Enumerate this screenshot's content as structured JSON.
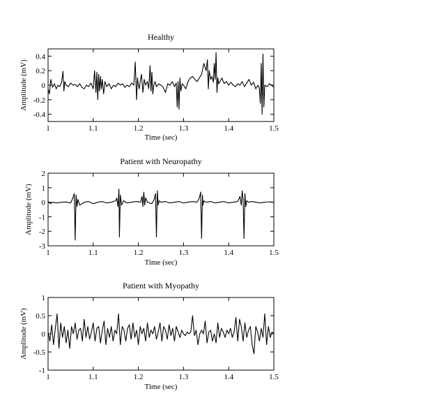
{
  "chart_data": [
    {
      "type": "line",
      "title": "Healthy",
      "xlabel": "Time (sec)",
      "ylabel": "Amplitude (mV)",
      "xlim": [
        1,
        1.5
      ],
      "ylim": [
        -0.5,
        0.5
      ],
      "xticks": [
        1,
        1.1,
        1.2,
        1.3,
        1.4,
        1.5
      ],
      "xtick_labels": [
        "1",
        "1.1",
        "1.2",
        "1.3",
        "1.4",
        "1.5"
      ],
      "yticks": [
        -0.4,
        -0.2,
        0,
        0.2,
        0.4
      ],
      "ytick_labels": [
        "-0.4",
        "-0.2",
        "0",
        "0.2",
        "0.4"
      ],
      "series": [
        {
          "x": [
            1.0,
            1.003,
            1.006,
            1.01,
            1.014,
            1.018,
            1.022,
            1.026,
            1.03,
            1.033,
            1.035,
            1.037,
            1.04,
            1.045,
            1.05,
            1.055,
            1.06,
            1.065,
            1.07,
            1.075,
            1.08,
            1.085,
            1.09,
            1.095,
            1.1,
            1.103,
            1.106,
            1.108,
            1.11,
            1.112,
            1.114,
            1.116,
            1.118,
            1.12,
            1.123,
            1.126,
            1.13,
            1.135,
            1.14,
            1.145,
            1.15,
            1.155,
            1.16,
            1.165,
            1.17,
            1.175,
            1.18,
            1.185,
            1.19,
            1.193,
            1.196,
            1.198,
            1.2,
            1.202,
            1.204,
            1.207,
            1.21,
            1.213,
            1.216,
            1.22,
            1.223,
            1.226,
            1.228,
            1.23,
            1.232,
            1.234,
            1.237,
            1.24,
            1.245,
            1.25,
            1.255,
            1.26,
            1.265,
            1.27,
            1.275,
            1.28,
            1.284,
            1.286,
            1.288,
            1.29,
            1.292,
            1.294,
            1.297,
            1.3,
            1.305,
            1.31,
            1.315,
            1.32,
            1.325,
            1.33,
            1.335,
            1.34,
            1.345,
            1.35,
            1.353,
            1.355,
            1.357,
            1.36,
            1.363,
            1.366,
            1.368,
            1.37,
            1.372,
            1.374,
            1.376,
            1.378,
            1.38,
            1.385,
            1.39,
            1.395,
            1.4,
            1.405,
            1.41,
            1.415,
            1.42,
            1.425,
            1.43,
            1.435,
            1.44,
            1.445,
            1.45,
            1.455,
            1.46,
            1.465,
            1.468,
            1.47,
            1.472,
            1.474,
            1.476,
            1.478,
            1.48,
            1.485,
            1.49,
            1.495,
            1.5
          ],
          "y": [
            -0.05,
            -0.12,
            0.08,
            -0.03,
            0.02,
            -0.05,
            0.0,
            -0.02,
            0.04,
            0.19,
            -0.08,
            0.05,
            0.0,
            -0.02,
            0.03,
            0.0,
            0.01,
            -0.02,
            0.02,
            -0.03,
            -0.05,
            0.0,
            -0.02,
            0.03,
            -0.05,
            0.2,
            -0.1,
            0.18,
            -0.2,
            0.15,
            -0.08,
            0.12,
            -0.05,
            0.08,
            -0.12,
            0.05,
            -0.02,
            0.02,
            -0.05,
            0.0,
            -0.02,
            0.03,
            0.0,
            0.02,
            -0.03,
            0.0,
            -0.02,
            0.03,
            0.0,
            0.32,
            -0.2,
            0.1,
            0.0,
            -0.05,
            0.05,
            0.15,
            -0.1,
            0.08,
            0.0,
            0.05,
            -0.05,
            0.27,
            -0.08,
            0.18,
            -0.12,
            0.0,
            0.05,
            -0.02,
            0.02,
            0.0,
            -0.03,
            -0.1,
            0.02,
            0.0,
            0.05,
            -0.02,
            0.03,
            -0.3,
            0.05,
            -0.33,
            0.1,
            -0.08,
            0.02,
            0.0,
            -0.05,
            0.05,
            0.1,
            0.12,
            0.08,
            0.05,
            0.1,
            0.15,
            0.3,
            0.2,
            0.35,
            -0.05,
            0.2,
            0.08,
            0.12,
            0.04,
            0.3,
            0.08,
            0.45,
            -0.1,
            0.1,
            0.02,
            0.04,
            0.1,
            0.02,
            0.05,
            0.0,
            0.04,
            0.0,
            -0.02,
            0.02,
            0.0,
            0.05,
            -0.02,
            0.03,
            0.08,
            0.0,
            0.04,
            -0.05,
            0.0,
            -0.05,
            -0.25,
            0.3,
            -0.4,
            0.43,
            -0.3,
            0.0,
            -0.02,
            0.02,
            0.0,
            -0.03
          ]
        }
      ]
    },
    {
      "type": "line",
      "title": "Patient with Neuropathy",
      "xlabel": "Time (sec)",
      "ylabel": "Amplitude (mV)",
      "xlim": [
        1,
        1.5
      ],
      "ylim": [
        -3,
        2
      ],
      "xticks": [
        1,
        1.1,
        1.2,
        1.3,
        1.4,
        1.5
      ],
      "xtick_labels": [
        "1",
        "1.1",
        "1.2",
        "1.3",
        "1.4",
        "1.5"
      ],
      "yticks": [
        -3,
        -2,
        -1,
        0,
        1,
        2
      ],
      "ytick_labels": [
        "-3",
        "-2",
        "-1",
        "0",
        "1",
        "2"
      ],
      "series": [
        {
          "x": [
            1.0,
            1.005,
            1.01,
            1.02,
            1.03,
            1.04,
            1.05,
            1.055,
            1.058,
            1.06,
            1.062,
            1.064,
            1.066,
            1.07,
            1.08,
            1.09,
            1.1,
            1.11,
            1.12,
            1.13,
            1.14,
            1.15,
            1.152,
            1.155,
            1.157,
            1.158,
            1.16,
            1.163,
            1.167,
            1.175,
            1.185,
            1.195,
            1.205,
            1.208,
            1.21,
            1.212,
            1.214,
            1.216,
            1.22,
            1.23,
            1.235,
            1.238,
            1.24,
            1.242,
            1.244,
            1.246,
            1.25,
            1.26,
            1.27,
            1.28,
            1.29,
            1.3,
            1.31,
            1.32,
            1.33,
            1.335,
            1.338,
            1.34,
            1.342,
            1.343,
            1.345,
            1.35,
            1.36,
            1.37,
            1.38,
            1.39,
            1.4,
            1.41,
            1.42,
            1.425,
            1.428,
            1.43,
            1.432,
            1.434,
            1.436,
            1.438,
            1.44,
            1.445,
            1.45,
            1.46,
            1.47,
            1.48,
            1.49,
            1.5
          ],
          "y": [
            0.05,
            -0.1,
            0.0,
            -0.05,
            0.0,
            0.02,
            -0.05,
            0.3,
            0.6,
            -2.6,
            0.5,
            -0.3,
            0.2,
            -0.2,
            0.0,
            0.05,
            -0.1,
            0.0,
            0.05,
            -0.05,
            0.0,
            0.1,
            0.3,
            -0.3,
            0.9,
            -2.4,
            0.5,
            -0.2,
            0.1,
            -0.05,
            0.0,
            0.05,
            0.0,
            0.4,
            -0.3,
            0.7,
            -0.2,
            0.3,
            0.0,
            -0.1,
            0.2,
            0.6,
            -2.4,
            0.8,
            -0.2,
            0.1,
            0.0,
            0.05,
            -0.05,
            0.0,
            0.05,
            -0.05,
            0.0,
            0.05,
            0.0,
            0.3,
            0.7,
            -2.5,
            0.5,
            -0.2,
            0.1,
            0.0,
            0.05,
            -0.05,
            0.0,
            0.05,
            -0.05,
            0.0,
            0.05,
            0.4,
            -0.2,
            0.8,
            0.2,
            -2.5,
            0.6,
            -0.3,
            0.1,
            0.0,
            0.05,
            0.0,
            -0.05,
            0.0,
            0.03,
            0.0
          ]
        }
      ]
    },
    {
      "type": "line",
      "title": "Patient with Myopathy",
      "xlabel": "Time (sec)",
      "ylabel": "Amplitude (mV)",
      "xlim": [
        1,
        1.5
      ],
      "ylim": [
        -1,
        1
      ],
      "xticks": [
        1,
        1.1,
        1.2,
        1.3,
        1.4,
        1.5
      ],
      "xtick_labels": [
        "1",
        "1.1",
        "1.2",
        "1.3",
        "1.4",
        "1.5"
      ],
      "yticks": [
        -1,
        -0.5,
        0,
        0.5,
        1
      ],
      "ytick_labels": [
        "-1",
        "-0.5",
        "0",
        "0.5",
        "1"
      ],
      "series": [
        {
          "x": [
            1.0,
            1.004,
            1.008,
            1.012,
            1.016,
            1.02,
            1.024,
            1.028,
            1.032,
            1.036,
            1.04,
            1.044,
            1.048,
            1.052,
            1.056,
            1.06,
            1.064,
            1.068,
            1.072,
            1.076,
            1.08,
            1.084,
            1.088,
            1.092,
            1.096,
            1.1,
            1.104,
            1.108,
            1.112,
            1.116,
            1.12,
            1.124,
            1.128,
            1.132,
            1.136,
            1.14,
            1.144,
            1.148,
            1.152,
            1.156,
            1.16,
            1.164,
            1.168,
            1.172,
            1.176,
            1.18,
            1.184,
            1.188,
            1.192,
            1.196,
            1.2,
            1.204,
            1.208,
            1.212,
            1.216,
            1.22,
            1.224,
            1.228,
            1.232,
            1.236,
            1.24,
            1.244,
            1.248,
            1.252,
            1.256,
            1.26,
            1.264,
            1.268,
            1.272,
            1.276,
            1.28,
            1.284,
            1.288,
            1.292,
            1.296,
            1.3,
            1.304,
            1.308,
            1.312,
            1.316,
            1.32,
            1.324,
            1.328,
            1.332,
            1.336,
            1.34,
            1.344,
            1.348,
            1.352,
            1.356,
            1.36,
            1.364,
            1.368,
            1.372,
            1.376,
            1.38,
            1.384,
            1.388,
            1.392,
            1.396,
            1.4,
            1.404,
            1.408,
            1.412,
            1.416,
            1.42,
            1.424,
            1.428,
            1.432,
            1.436,
            1.44,
            1.444,
            1.448,
            1.452,
            1.456,
            1.46,
            1.464,
            1.468,
            1.472,
            1.476,
            1.48,
            1.484,
            1.488,
            1.492,
            1.496,
            1.5
          ],
          "y": [
            0.05,
            -0.2,
            0.25,
            -0.3,
            0.15,
            0.55,
            -0.4,
            0.3,
            -0.1,
            0.2,
            -0.25,
            0.1,
            -0.4,
            0.2,
            0.0,
            0.3,
            -0.15,
            0.1,
            0.15,
            -0.2,
            0.4,
            -0.1,
            0.2,
            -0.15,
            0.05,
            0.3,
            -0.2,
            0.15,
            0.2,
            -0.25,
            0.1,
            0.35,
            -0.3,
            0.15,
            -0.1,
            0.2,
            -0.2,
            0.1,
            0.0,
            0.55,
            -0.3,
            0.2,
            0.1,
            -0.2,
            0.15,
            0.25,
            -0.15,
            0.3,
            -0.1,
            0.1,
            -0.3,
            0.2,
            0.0,
            0.15,
            -0.2,
            0.3,
            -0.1,
            0.1,
            0.0,
            0.2,
            -0.15,
            0.05,
            0.3,
            -0.2,
            0.2,
            0.1,
            -0.15,
            0.25,
            -0.05,
            0.15,
            -0.2,
            0.2,
            0.05,
            -0.1,
            0.1,
            0.0,
            -0.05,
            0.05,
            0.0,
            0.05,
            0.5,
            -0.05,
            0.1,
            -0.3,
            0.0,
            0.1,
            0.0,
            0.35,
            -0.25,
            0.05,
            0.1,
            -0.2,
            0.0,
            -0.25,
            0.3,
            -0.1,
            0.15,
            0.05,
            -0.1,
            0.1,
            0.0,
            0.15,
            -0.1,
            0.05,
            0.45,
            -0.2,
            0.4,
            0.2,
            -0.2,
            0.3,
            -0.1,
            0.1,
            0.2,
            -0.3,
            -0.55,
            0.2,
            0.05,
            -0.2,
            0.15,
            -0.1,
            0.55,
            -0.3,
            0.2,
            -0.1,
            0.05,
            0.0
          ]
        }
      ]
    }
  ]
}
